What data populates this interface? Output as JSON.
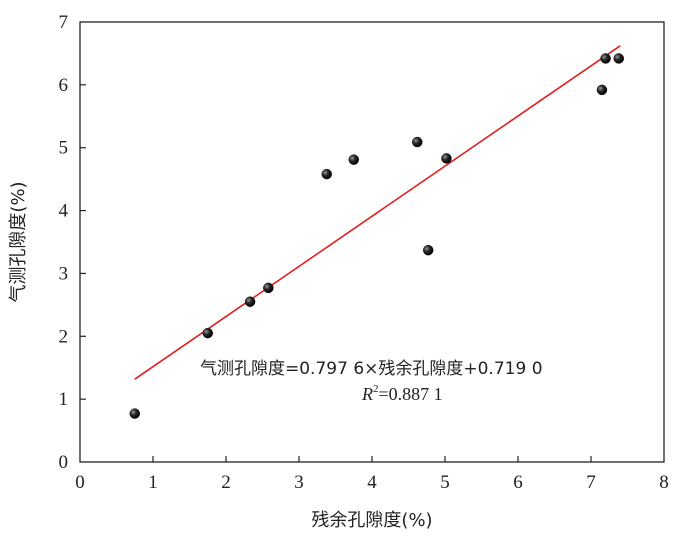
{
  "chart_data": {
    "type": "scatter",
    "title": "",
    "xlabel": "残余孔隙度(%)",
    "ylabel": "气测孔隙度(%)",
    "xlim": [
      0,
      8
    ],
    "ylim": [
      0,
      7
    ],
    "xticks": [
      "0",
      "1",
      "2",
      "3",
      "4",
      "5",
      "6",
      "7",
      "8"
    ],
    "yticks": [
      "0",
      "1",
      "2",
      "3",
      "4",
      "5",
      "6",
      "7"
    ],
    "grid": false,
    "points": {
      "x": [
        0.75,
        1.75,
        2.33,
        2.58,
        3.38,
        3.75,
        4.62,
        4.77,
        5.02,
        7.15,
        7.2,
        7.38
      ],
      "y": [
        0.77,
        2.05,
        2.55,
        2.77,
        4.58,
        4.81,
        5.09,
        3.37,
        4.83,
        5.92,
        6.42,
        6.42
      ]
    },
    "fit": {
      "slope": 0.7976,
      "intercept": 0.719,
      "x_range": [
        0.75,
        7.4
      ],
      "color": "#e02020"
    },
    "point_color": "#111111",
    "annotations": {
      "equation": "气测孔隙度=0.797 6×残余孔隙度+0.719 0",
      "r2_prefix": "R",
      "r2_sup": "2",
      "r2_value": "=0.887 1"
    }
  }
}
